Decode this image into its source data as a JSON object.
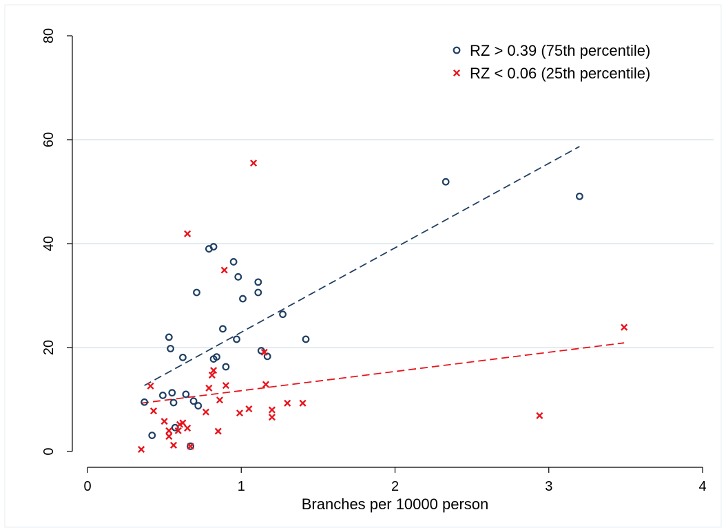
{
  "chart_data": {
    "type": "scatter",
    "xlabel": "Branches per 10000 person",
    "ylabel": "",
    "xlim": [
      0,
      4
    ],
    "ylim": [
      0,
      80
    ],
    "x_ticks": [
      0,
      1,
      2,
      3,
      4
    ],
    "y_ticks": [
      0,
      20,
      40,
      60,
      80
    ],
    "y_gridlines": [
      20,
      40,
      60
    ],
    "legend_position": "top-right",
    "series": [
      {
        "name": "RZ > 0.39 (75th percentile)",
        "marker": "circle",
        "color": "#1f3f63",
        "points": [
          [
            0.37,
            9.5
          ],
          [
            0.42,
            3.1
          ],
          [
            0.49,
            10.8
          ],
          [
            0.53,
            22.0
          ],
          [
            0.54,
            19.8
          ],
          [
            0.55,
            11.3
          ],
          [
            0.56,
            9.4
          ],
          [
            0.57,
            4.6
          ],
          [
            0.62,
            18.1
          ],
          [
            0.64,
            11.0
          ],
          [
            0.67,
            1.0
          ],
          [
            0.69,
            9.7
          ],
          [
            0.71,
            30.6
          ],
          [
            0.72,
            8.8
          ],
          [
            0.79,
            39.0
          ],
          [
            0.82,
            17.8
          ],
          [
            0.82,
            39.4
          ],
          [
            0.84,
            18.2
          ],
          [
            0.88,
            23.6
          ],
          [
            0.9,
            16.3
          ],
          [
            0.95,
            36.5
          ],
          [
            0.97,
            21.6
          ],
          [
            0.98,
            33.6
          ],
          [
            1.01,
            29.4
          ],
          [
            1.11,
            32.6
          ],
          [
            1.11,
            30.6
          ],
          [
            1.13,
            19.4
          ],
          [
            1.17,
            18.3
          ],
          [
            1.27,
            26.4
          ],
          [
            1.42,
            21.6
          ],
          [
            2.33,
            51.9
          ],
          [
            3.2,
            49.1
          ]
        ],
        "fit_line": [
          [
            0.37,
            12.7
          ],
          [
            3.2,
            58.7
          ]
        ]
      },
      {
        "name": "RZ < 0.06 (25th percentile)",
        "marker": "x",
        "color": "#e8141c",
        "points": [
          [
            0.35,
            0.4
          ],
          [
            0.41,
            12.6
          ],
          [
            0.43,
            7.8
          ],
          [
            0.5,
            5.8
          ],
          [
            0.53,
            4.0
          ],
          [
            0.53,
            2.9
          ],
          [
            0.56,
            1.2
          ],
          [
            0.59,
            4.0
          ],
          [
            0.6,
            5.2
          ],
          [
            0.62,
            5.5
          ],
          [
            0.65,
            4.5
          ],
          [
            0.65,
            41.9
          ],
          [
            0.67,
            1.0
          ],
          [
            0.77,
            7.6
          ],
          [
            0.79,
            12.2
          ],
          [
            0.81,
            14.7
          ],
          [
            0.82,
            15.6
          ],
          [
            0.85,
            3.9
          ],
          [
            0.86,
            9.9
          ],
          [
            0.89,
            34.9
          ],
          [
            0.9,
            12.7
          ],
          [
            0.99,
            7.4
          ],
          [
            1.05,
            8.2
          ],
          [
            1.08,
            55.5
          ],
          [
            1.15,
            19.1
          ],
          [
            1.16,
            12.9
          ],
          [
            1.2,
            8.0
          ],
          [
            1.2,
            6.6
          ],
          [
            1.3,
            9.3
          ],
          [
            1.4,
            9.3
          ],
          [
            2.94,
            6.9
          ],
          [
            3.49,
            23.9
          ]
        ],
        "fit_line": [
          [
            0.35,
            9.3
          ],
          [
            3.49,
            20.9
          ]
        ]
      }
    ]
  }
}
